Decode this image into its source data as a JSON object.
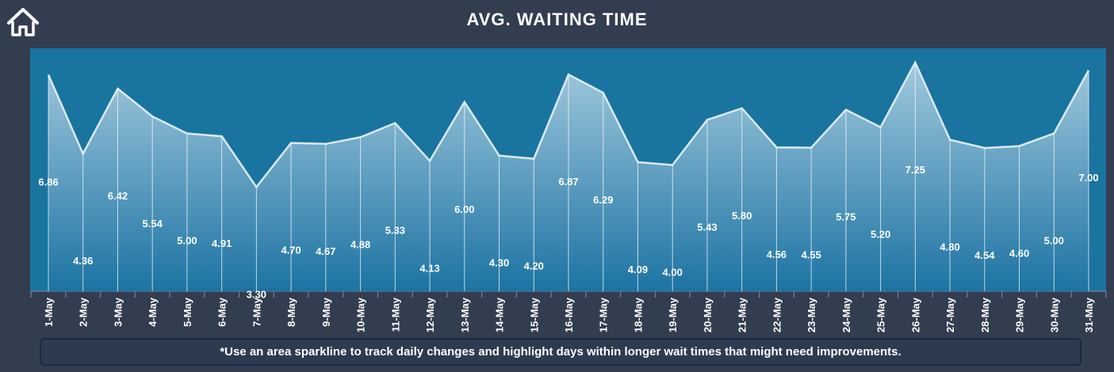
{
  "header": {
    "title": "AVG. WAITING TIME",
    "home_icon": "home-icon"
  },
  "footer": {
    "note": "*Use an area sparkline to track daily changes and highlight days within longer wait times that might need improvements."
  },
  "colors": {
    "background": "#333d50",
    "plot_background": "#1a74a0",
    "area_top": "#a9cde0",
    "area_bottom": "#1c73a3",
    "line": "#d8eaf4",
    "text": "#ffffff"
  },
  "chart_data": {
    "type": "area",
    "title": "AVG. WAITING TIME",
    "xlabel": "",
    "ylabel": "",
    "grid": false,
    "legend": "none",
    "categories": [
      "1-May",
      "2-May",
      "3-May",
      "4-May",
      "5-May",
      "6-May",
      "7-May",
      "8-May",
      "9-May",
      "10-May",
      "11-May",
      "12-May",
      "13-May",
      "14-May",
      "15-May",
      "16-May",
      "17-May",
      "18-May",
      "19-May",
      "20-May",
      "21-May",
      "22-May",
      "23-May",
      "24-May",
      "25-May",
      "26-May",
      "27-May",
      "28-May",
      "29-May",
      "30-May",
      "31-May"
    ],
    "values": [
      6.86,
      4.36,
      6.42,
      5.54,
      5.0,
      4.91,
      3.3,
      4.7,
      4.67,
      4.88,
      5.33,
      4.13,
      6.0,
      4.3,
      4.2,
      6.87,
      6.29,
      4.09,
      4.0,
      5.43,
      5.8,
      4.56,
      4.55,
      5.75,
      5.2,
      7.25,
      4.8,
      4.54,
      4.6,
      5.0,
      7.0
    ],
    "labels": [
      "6.86",
      "4.36",
      "6.42",
      "5.54",
      "5.00",
      "4.91",
      "3.30",
      "4.70",
      "4.67",
      "4.88",
      "5.33",
      "4.13",
      "6.00",
      "4.30",
      "4.20",
      "6.87",
      "6.29",
      "4.09",
      "4.00",
      "5.43",
      "5.80",
      "4.56",
      "4.55",
      "5.75",
      "5.20",
      "7.25",
      "4.80",
      "4.54",
      "4.60",
      "5.00",
      "7.00"
    ],
    "ylim": [
      0,
      7.7
    ]
  }
}
